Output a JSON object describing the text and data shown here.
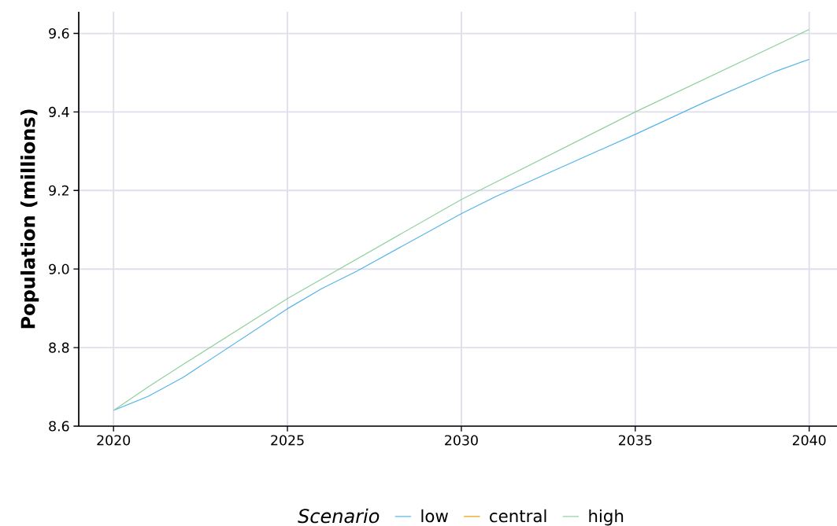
{
  "chart_data": {
    "type": "line",
    "ylabel": "Population (millions)",
    "legend_title": "Scenario",
    "xlim": [
      2019,
      2040.8
    ],
    "ylim": [
      8.6,
      9.655
    ],
    "xticks": [
      2020,
      2025,
      2030,
      2035,
      2040
    ],
    "yticks": [
      {
        "value": 8.6,
        "label": "8.6"
      },
      {
        "value": 8.8,
        "label": "8.8"
      },
      {
        "value": 9.0,
        "label": "9.0"
      },
      {
        "value": 9.2,
        "label": "9.2"
      },
      {
        "value": 9.4,
        "label": "9.4"
      },
      {
        "value": 9.6,
        "label": "9.6"
      }
    ],
    "grid": true,
    "legend": "bottom",
    "marker": "none",
    "line_style": "solid",
    "series": [
      {
        "name": "low",
        "color": "#56b4e9",
        "x": [
          2020,
          2021,
          2022,
          2025,
          2026,
          2027,
          2030,
          2031,
          2035,
          2037,
          2039,
          2040
        ],
        "values": [
          8.64,
          8.676,
          8.724,
          8.899,
          8.951,
          8.995,
          9.141,
          9.185,
          9.343,
          9.425,
          9.502,
          9.534
        ]
      },
      {
        "name": "central",
        "color": "#e69f00"
      },
      {
        "name": "high",
        "color": "#8fd19e",
        "x": [
          2020,
          2021,
          2022,
          2025,
          2030,
          2035,
          2040
        ],
        "values": [
          8.64,
          8.7,
          8.757,
          8.925,
          9.177,
          9.4,
          9.61
        ]
      }
    ]
  }
}
